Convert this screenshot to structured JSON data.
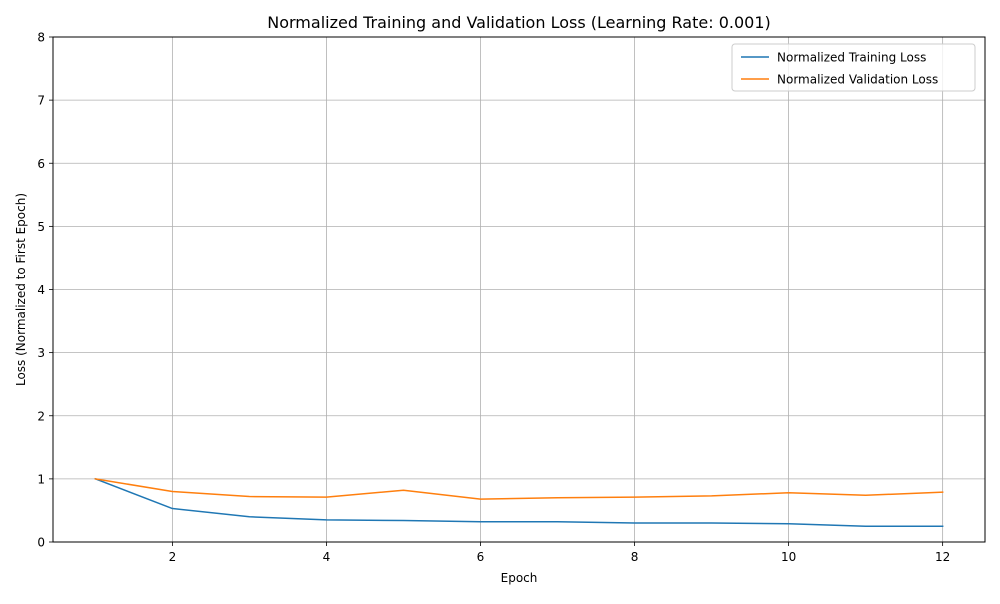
{
  "chart_data": {
    "type": "line",
    "title": "Normalized Training and Validation Loss (Learning Rate: 0.001)",
    "xlabel": "Epoch",
    "ylabel": "Loss (Normalized to First Epoch)",
    "x": [
      1,
      2,
      3,
      4,
      5,
      6,
      7,
      8,
      9,
      10,
      11,
      12
    ],
    "xlim": [
      0.45,
      12.55
    ],
    "ylim": [
      0,
      8
    ],
    "xticks": [
      2,
      4,
      6,
      8,
      10,
      12
    ],
    "yticks": [
      0,
      1,
      2,
      3,
      4,
      5,
      6,
      7,
      8
    ],
    "grid": true,
    "legend_position": "top-right",
    "series": [
      {
        "name": "Normalized Training Loss",
        "color": "#1f77b4",
        "values": [
          1.0,
          0.53,
          0.4,
          0.35,
          0.34,
          0.32,
          0.32,
          0.3,
          0.3,
          0.29,
          0.25,
          0.25
        ]
      },
      {
        "name": "Normalized Validation Loss",
        "color": "#ff7f0e",
        "values": [
          1.0,
          0.8,
          0.72,
          0.71,
          0.82,
          0.68,
          0.7,
          0.71,
          0.73,
          0.78,
          0.74,
          0.79
        ]
      }
    ]
  }
}
